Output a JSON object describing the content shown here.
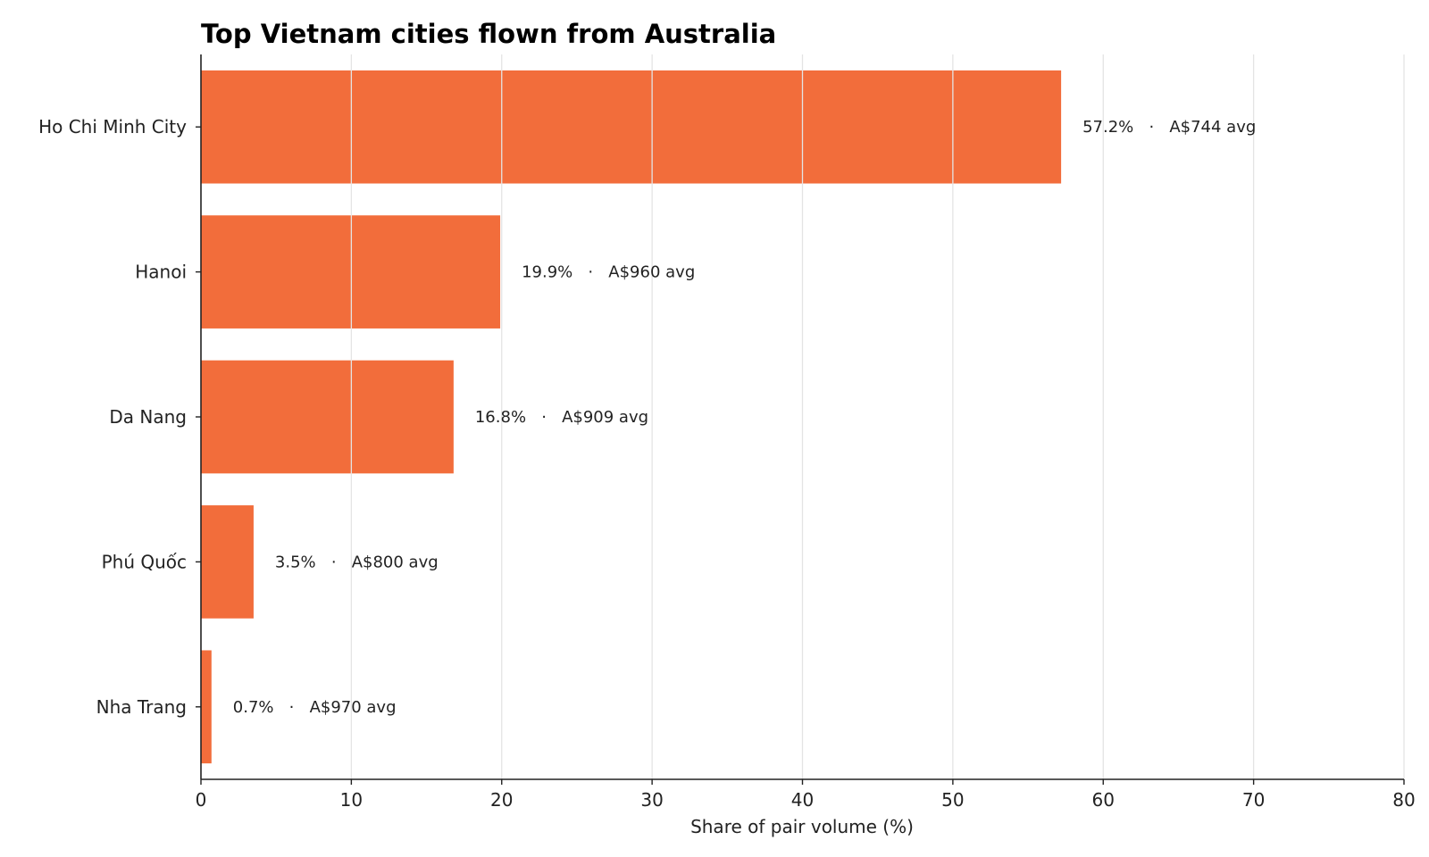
{
  "chart_data": {
    "type": "bar",
    "orientation": "horizontal",
    "title": "Top Vietnam cities flown from Australia",
    "xlabel": "Share of pair volume (%)",
    "ylabel": "",
    "xlim": [
      0,
      80
    ],
    "xticks": [
      0,
      10,
      20,
      30,
      40,
      50,
      60,
      70,
      80
    ],
    "grid": "vertical",
    "bar_color": "#F26D3B",
    "categories": [
      "Ho Chi Minh City",
      "Hanoi",
      "Da Nang",
      "Phú Quốc",
      "Nha Trang"
    ],
    "values": [
      57.2,
      19.9,
      16.8,
      3.5,
      0.7
    ],
    "data_labels": [
      "57.2%   ·   A$744 avg",
      "19.9%   ·   A$960 avg",
      "16.8%   ·   A$909 avg",
      "3.5%   ·   A$800 avg",
      "0.7%   ·   A$970 avg"
    ]
  }
}
